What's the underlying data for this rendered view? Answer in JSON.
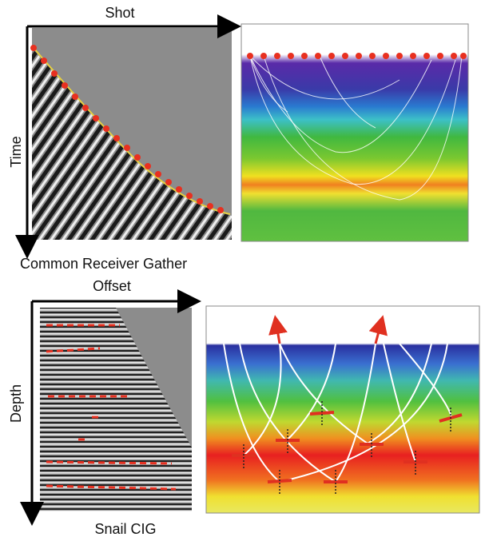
{
  "panels": {
    "shot_axis": "Shot",
    "time_axis": "Time",
    "top_caption": "Common Receiver Gather",
    "offset_axis": "Offset",
    "depth_axis": "Depth",
    "bottom_caption": "Snail CIG"
  }
}
